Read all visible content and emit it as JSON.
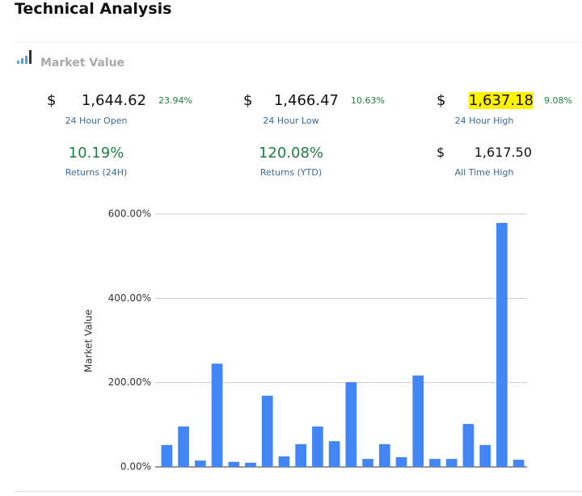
{
  "header": {
    "title": "Technical Analysis"
  },
  "panel": {
    "title": "Market Value"
  },
  "stats": [
    {
      "currency": "$",
      "value": "1,644.62",
      "change": "23.94%",
      "label": "24 Hour Open"
    },
    {
      "currency": "$",
      "value": "1,466.47",
      "change": "10.63%",
      "label": "24 Hour Low"
    },
    {
      "currency": "$",
      "value": "1,637.18",
      "change": "9.08%",
      "label": "24 Hour High"
    },
    {
      "value": "10.19%",
      "label": "Returns (24H)"
    },
    {
      "value": "120.08%",
      "label": "Returns (YTD)"
    },
    {
      "currency": "$",
      "value": "1,617.50",
      "label": "All Time High"
    }
  ],
  "chart_data": {
    "type": "bar",
    "y_label": "Market Value",
    "color": "#4285f4",
    "grid": true,
    "categories": [
      null,
      null,
      null,
      null,
      null,
      null,
      null,
      null,
      null,
      null,
      null,
      null,
      null,
      null,
      null,
      null,
      null,
      null,
      null,
      null,
      null,
      null
    ],
    "values": [
      52,
      96,
      15,
      245,
      12,
      10,
      169,
      25,
      54,
      96,
      61,
      201,
      19,
      54,
      23,
      217,
      19,
      19,
      102,
      52,
      579,
      17
    ],
    "ylim": [
      0,
      600
    ],
    "yticks": [
      {
        "value": 0,
        "label": "0.00%"
      },
      {
        "value": 200,
        "label": "200.00%"
      },
      {
        "value": 400,
        "label": "400.00%"
      },
      {
        "value": 600,
        "label": "600.00%"
      }
    ]
  }
}
